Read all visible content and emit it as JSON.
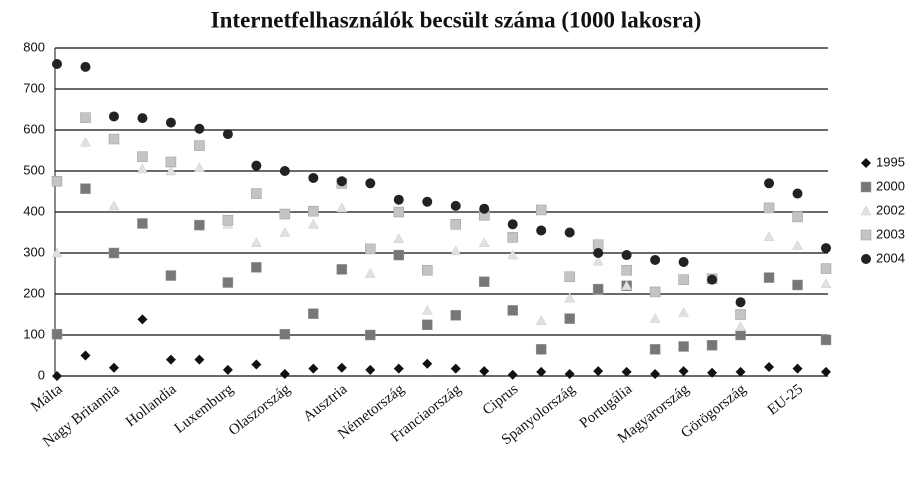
{
  "chart_data": {
    "type": "scatter",
    "title": "Internetfelhasználók becsült száma (1000 lakosra)",
    "categories": [
      "Málta",
      null,
      "Nagy Britannia",
      null,
      "Hollandia",
      null,
      "Luxemburg",
      null,
      "Olaszország",
      null,
      "Ausztria",
      null,
      "Németország",
      null,
      "Franciaország",
      null,
      "Ciprus",
      null,
      "Spanyolország",
      null,
      "Portugália",
      null,
      "Magyarország",
      null,
      "Görögország",
      null,
      "EU-25",
      null
    ],
    "series": [
      {
        "name": "1995",
        "color": "#111111",
        "marker": "diamond",
        "values": [
          0,
          50,
          20,
          138,
          40,
          40,
          15,
          28,
          5,
          18,
          20,
          15,
          18,
          30,
          18,
          12,
          3,
          10,
          5,
          12,
          10,
          5,
          12,
          8,
          10,
          22,
          18,
          10
        ]
      },
      {
        "name": "2000",
        "color": "#777777",
        "marker": "square",
        "values": [
          102,
          457,
          300,
          372,
          245,
          368,
          228,
          265,
          102,
          152,
          260,
          100,
          295,
          125,
          148,
          230,
          160,
          65,
          140,
          212,
          220,
          65,
          72,
          75,
          100,
          240,
          222,
          88
        ]
      },
      {
        "name": "2002",
        "color": "#e2e2da",
        "marker": "triangle",
        "values": [
          300,
          570,
          415,
          505,
          500,
          508,
          370,
          325,
          350,
          370,
          410,
          250,
          335,
          160,
          305,
          325,
          295,
          135,
          190,
          280,
          220,
          140,
          155,
          235,
          120,
          340,
          318,
          225
        ]
      },
      {
        "name": "2003",
        "color": "#c4c4c4",
        "marker": "square",
        "values": [
          475,
          630,
          578,
          535,
          522,
          562,
          380,
          445,
          395,
          402,
          470,
          310,
          400,
          258,
          370,
          392,
          338,
          405,
          242,
          320,
          258,
          205,
          235,
          237,
          150,
          410,
          388,
          262
        ]
      },
      {
        "name": "2004",
        "color": "#222222",
        "marker": "circle",
        "values": [
          761,
          754,
          633,
          629,
          618,
          603,
          590,
          513,
          500,
          483,
          475,
          470,
          430,
          425,
          415,
          408,
          370,
          355,
          350,
          300,
          295,
          283,
          278,
          235,
          180,
          470,
          445,
          312
        ]
      }
    ],
    "ylim": [
      0,
      800
    ],
    "yticks": [
      0,
      100,
      200,
      300,
      400,
      500,
      600,
      700,
      800
    ],
    "grid": true,
    "legend": "right"
  }
}
